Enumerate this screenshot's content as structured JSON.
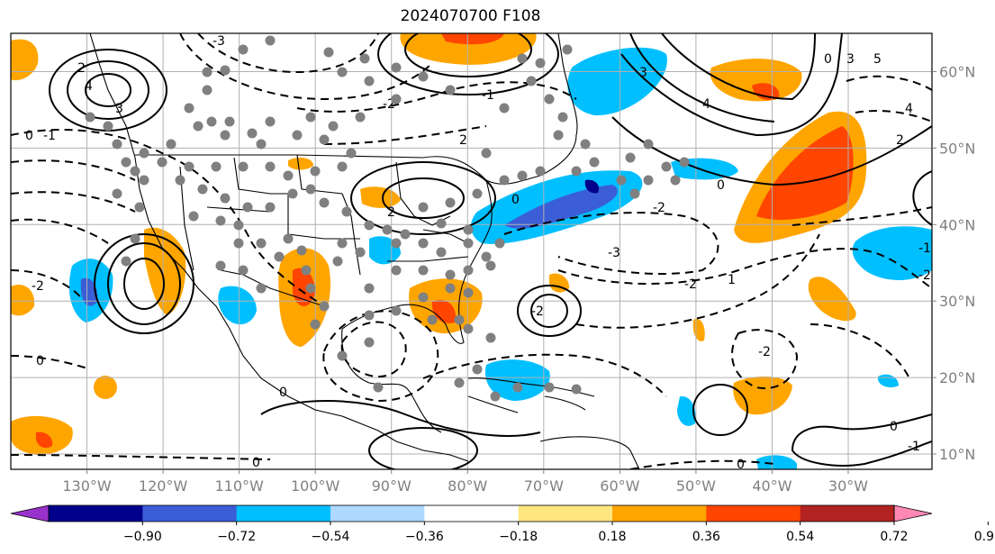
{
  "title": "2024070700 F108",
  "map": {
    "lon_range": [
      -140,
      -19
    ],
    "lat_range": [
      8,
      65
    ],
    "lon_ticks": [
      {
        "value": -130,
        "label": "130°W"
      },
      {
        "value": -120,
        "label": "120°W"
      },
      {
        "value": -110,
        "label": "110°W"
      },
      {
        "value": -100,
        "label": "100°W"
      },
      {
        "value": -90,
        "label": "90°W"
      },
      {
        "value": -80,
        "label": "80°W"
      },
      {
        "value": -70,
        "label": "70°W"
      },
      {
        "value": -60,
        "label": "60°W"
      },
      {
        "value": -50,
        "label": "50°W"
      },
      {
        "value": -40,
        "label": "40°W"
      },
      {
        "value": -30,
        "label": "30°W"
      }
    ],
    "lat_ticks": [
      {
        "value": 60,
        "label": "60°N"
      },
      {
        "value": 50,
        "label": "50°N"
      },
      {
        "value": 40,
        "label": "40°N"
      },
      {
        "value": 30,
        "label": "30°N"
      },
      {
        "value": 20,
        "label": "20°N"
      },
      {
        "value": 10,
        "label": "10°N"
      }
    ],
    "gridlines": true,
    "contour_labels": [
      "-3",
      "2",
      "3",
      "4",
      "-1",
      "-2",
      "0",
      "1",
      "5"
    ]
  },
  "colorbar": {
    "ticks": [
      "−0.90",
      "−0.72",
      "−0.54",
      "−0.36",
      "−0.18",
      "0.18",
      "0.36",
      "0.54",
      "0.72",
      "0.90"
    ],
    "colors": [
      "#9932cc",
      "#00008b",
      "#3b5ed6",
      "#00bfff",
      "#add8ff",
      "#ffffff",
      "#ffe680",
      "#ffa500",
      "#ff4500",
      "#b22222",
      "#ff88b4"
    ],
    "extend": "both"
  },
  "colors": {
    "dots": "#808080",
    "contours": "#000000"
  }
}
